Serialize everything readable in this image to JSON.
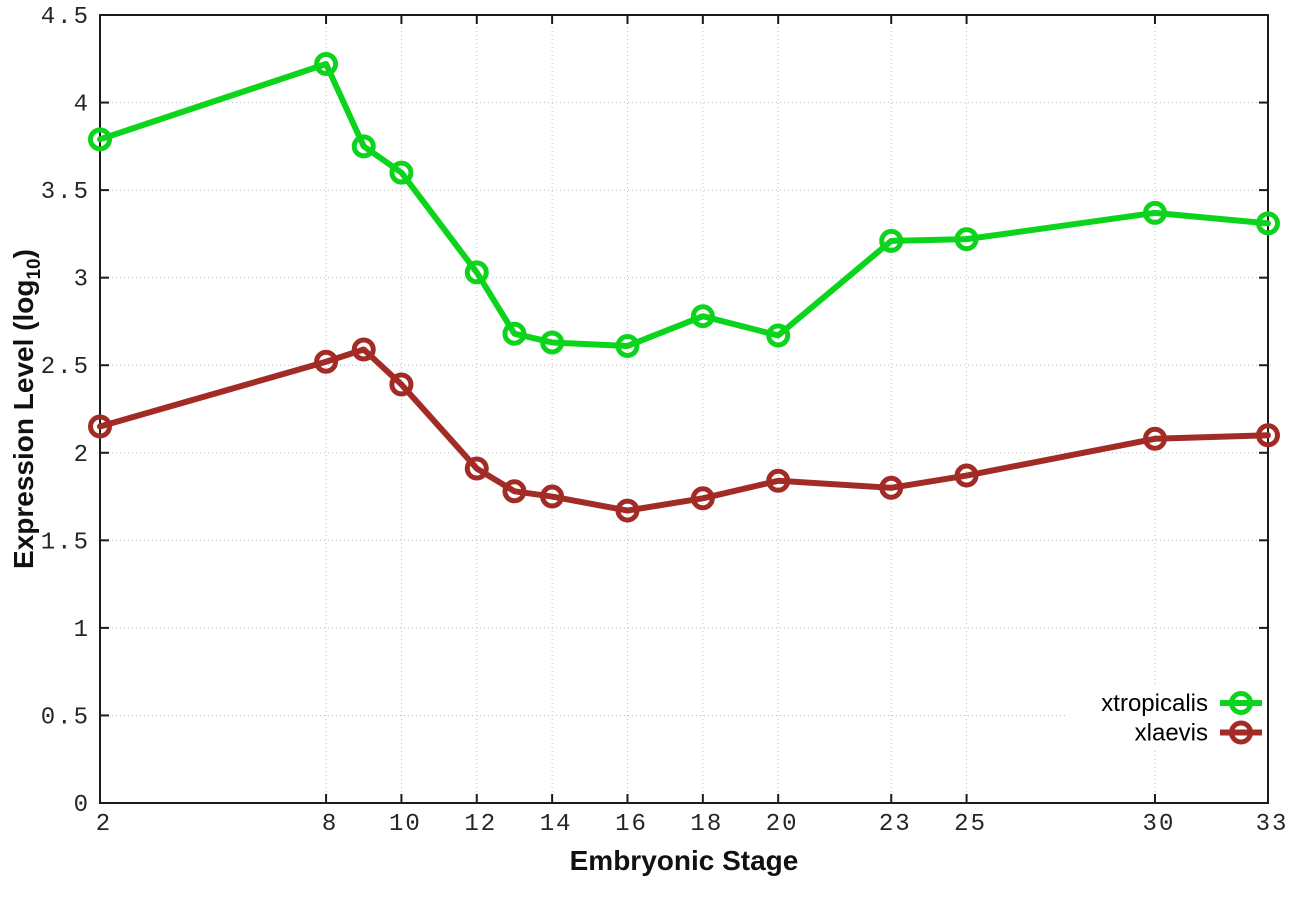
{
  "chart_data": {
    "type": "line",
    "title": "",
    "xlabel": "Embryonic Stage",
    "ylabel": {
      "prefix": "Expression Level (log",
      "sub": "10",
      "suffix": ")"
    },
    "xlim": [
      2,
      33
    ],
    "ylim": [
      0,
      4.5
    ],
    "grid": true,
    "grid_style": "dotted",
    "legend_position": "inside-bottom-right",
    "legend_opaque": true,
    "x_tick_values": [
      2,
      8,
      10,
      12,
      14,
      16,
      18,
      20,
      23,
      25,
      30,
      33
    ],
    "x_tick_labels": [
      "2",
      "8",
      "10",
      "12",
      "14",
      "16",
      "18",
      "20",
      "23",
      "25",
      "30",
      "33"
    ],
    "y_tick_values": [
      0,
      0.5,
      1,
      1.5,
      2,
      2.5,
      3,
      3.5,
      4,
      4.5
    ],
    "y_tick_labels": [
      "0",
      "0.5",
      "1",
      "1.5",
      "2",
      "2.5",
      "3",
      "3.5",
      "4",
      "4.5"
    ],
    "x": [
      2,
      8,
      9,
      10,
      12,
      13,
      14,
      16,
      18,
      20,
      23,
      25,
      30,
      33
    ],
    "series": [
      {
        "name": "xtropicalis",
        "color": "#0cd41c",
        "marker": "open-circle",
        "values": [
          3.79,
          4.22,
          3.75,
          3.6,
          3.03,
          2.68,
          2.63,
          2.61,
          2.78,
          2.67,
          3.21,
          3.22,
          3.37,
          3.31
        ]
      },
      {
        "name": "xlaevis",
        "color": "#a32b26",
        "marker": "open-circle",
        "values": [
          2.15,
          2.52,
          2.59,
          2.39,
          1.91,
          1.78,
          1.75,
          1.67,
          1.74,
          1.84,
          1.8,
          1.87,
          2.08,
          2.1
        ]
      }
    ],
    "colors": {
      "background": "#ffffff",
      "plot_border": "#1a1a1a",
      "grid": "#bdbdbd",
      "tick_text": "#262626",
      "legend_text": "#000000"
    }
  }
}
